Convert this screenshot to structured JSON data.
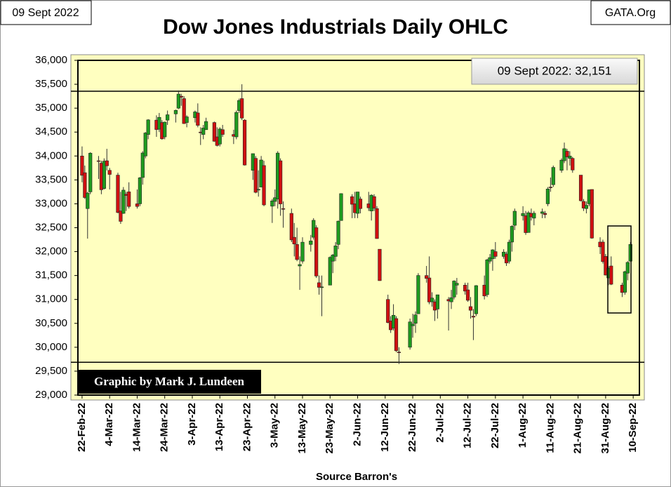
{
  "chart_data": {
    "type": "ohlc",
    "title": "Dow Jones Industrials Daily OHLC",
    "date_label": "09 Sept 2022",
    "site": "GATA.Org",
    "annotation": "09 Sept 2022: 32,151",
    "credit": "Graphic by Mark J. Lundeen",
    "x_label": "Source Barron's",
    "up_color": "#1e9a1e",
    "down_color": "#d01010",
    "reference_lines": [
      35354,
      29686
    ],
    "xlim": [
      "2022-02-21",
      "2022-09-12"
    ],
    "xticks": [
      {
        "value": "2022-02-22",
        "label": "22-Feb-22"
      },
      {
        "value": "2022-03-04",
        "label": "4-Mar-22"
      },
      {
        "value": "2022-03-14",
        "label": "14-Mar-22"
      },
      {
        "value": "2022-03-24",
        "label": "24-Mar-22"
      },
      {
        "value": "2022-04-03",
        "label": "3-Apr-22"
      },
      {
        "value": "2022-04-13",
        "label": "13-Apr-22"
      },
      {
        "value": "2022-04-23",
        "label": "23-Apr-22"
      },
      {
        "value": "2022-05-03",
        "label": "3-May-22"
      },
      {
        "value": "2022-05-13",
        "label": "13-May-22"
      },
      {
        "value": "2022-05-23",
        "label": "23-May-22"
      },
      {
        "value": "2022-06-02",
        "label": "2-Jun-22"
      },
      {
        "value": "2022-06-12",
        "label": "12-Jun-22"
      },
      {
        "value": "2022-06-22",
        "label": "22-Jun-22"
      },
      {
        "value": "2022-07-02",
        "label": "2-Jul-22"
      },
      {
        "value": "2022-07-12",
        "label": "12-Jul-22"
      },
      {
        "value": "2022-07-22",
        "label": "22-Jul-22"
      },
      {
        "value": "2022-08-01",
        "label": "1-Aug-22"
      },
      {
        "value": "2022-08-11",
        "label": "11-Aug-22"
      },
      {
        "value": "2022-08-21",
        "label": "21-Aug-22"
      },
      {
        "value": "2022-08-31",
        "label": "31-Aug-22"
      },
      {
        "value": "2022-09-10",
        "label": "10-Sep-22"
      }
    ],
    "ylim": [
      29000,
      36000
    ],
    "yticks": [
      {
        "value": 29000,
        "label": "29,000"
      },
      {
        "value": 29500,
        "label": "29,500"
      },
      {
        "value": 30000,
        "label": "30,000"
      },
      {
        "value": 30500,
        "label": "30,500"
      },
      {
        "value": 31000,
        "label": "31,000"
      },
      {
        "value": 31500,
        "label": "31,500"
      },
      {
        "value": 32000,
        "label": "32,000"
      },
      {
        "value": 32500,
        "label": "32,500"
      },
      {
        "value": 33000,
        "label": "33,000"
      },
      {
        "value": 33500,
        "label": "33,500"
      },
      {
        "value": 34000,
        "label": "34,000"
      },
      {
        "value": 34500,
        "label": "34,500"
      },
      {
        "value": 35000,
        "label": "35,000"
      },
      {
        "value": 35500,
        "label": "35,500"
      },
      {
        "value": 36000,
        "label": "36,000"
      }
    ],
    "x": [
      "2022-02-22",
      "2022-02-23",
      "2022-02-24",
      "2022-02-25",
      "2022-02-28",
      "2022-03-01",
      "2022-03-02",
      "2022-03-03",
      "2022-03-04",
      "2022-03-07",
      "2022-03-08",
      "2022-03-09",
      "2022-03-10",
      "2022-03-11",
      "2022-03-14",
      "2022-03-15",
      "2022-03-16",
      "2022-03-17",
      "2022-03-18",
      "2022-03-21",
      "2022-03-22",
      "2022-03-23",
      "2022-03-24",
      "2022-03-25",
      "2022-03-28",
      "2022-03-29",
      "2022-03-30",
      "2022-03-31",
      "2022-04-01",
      "2022-04-04",
      "2022-04-05",
      "2022-04-06",
      "2022-04-07",
      "2022-04-08",
      "2022-04-11",
      "2022-04-12",
      "2022-04-13",
      "2022-04-14",
      "2022-04-18",
      "2022-04-19",
      "2022-04-20",
      "2022-04-21",
      "2022-04-22",
      "2022-04-25",
      "2022-04-26",
      "2022-04-27",
      "2022-04-28",
      "2022-04-29",
      "2022-05-02",
      "2022-05-03",
      "2022-05-04",
      "2022-05-05",
      "2022-05-06",
      "2022-05-09",
      "2022-05-10",
      "2022-05-11",
      "2022-05-12",
      "2022-05-13",
      "2022-05-16",
      "2022-05-17",
      "2022-05-18",
      "2022-05-19",
      "2022-05-20",
      "2022-05-23",
      "2022-05-24",
      "2022-05-25",
      "2022-05-26",
      "2022-05-27",
      "2022-05-31",
      "2022-06-01",
      "2022-06-02",
      "2022-06-03",
      "2022-06-06",
      "2022-06-07",
      "2022-06-08",
      "2022-06-09",
      "2022-06-10",
      "2022-06-13",
      "2022-06-14",
      "2022-06-15",
      "2022-06-16",
      "2022-06-17",
      "2022-06-21",
      "2022-06-22",
      "2022-06-23",
      "2022-06-24",
      "2022-06-27",
      "2022-06-28",
      "2022-06-29",
      "2022-06-30",
      "2022-07-01",
      "2022-07-05",
      "2022-07-06",
      "2022-07-07",
      "2022-07-08",
      "2022-07-11",
      "2022-07-12",
      "2022-07-13",
      "2022-07-14",
      "2022-07-15",
      "2022-07-18",
      "2022-07-19",
      "2022-07-20",
      "2022-07-21",
      "2022-07-22",
      "2022-07-25",
      "2022-07-26",
      "2022-07-27",
      "2022-07-28",
      "2022-07-29",
      "2022-08-01",
      "2022-08-02",
      "2022-08-03",
      "2022-08-04",
      "2022-08-05",
      "2022-08-08",
      "2022-08-09",
      "2022-08-10",
      "2022-08-11",
      "2022-08-12",
      "2022-08-15",
      "2022-08-16",
      "2022-08-17",
      "2022-08-18",
      "2022-08-19",
      "2022-08-22",
      "2022-08-23",
      "2022-08-24",
      "2022-08-25",
      "2022-08-26",
      "2022-08-29",
      "2022-08-30",
      "2022-08-31",
      "2022-09-01",
      "2022-09-02",
      "2022-09-06",
      "2022-09-07",
      "2022-09-08",
      "2022-09-09"
    ],
    "ohlc": [
      [
        34000,
        34200,
        33450,
        33596
      ],
      [
        33650,
        33800,
        33100,
        33131
      ],
      [
        32900,
        33250,
        32272,
        33224
      ],
      [
        33250,
        34080,
        33200,
        34059
      ],
      [
        33900,
        34000,
        33520,
        33893
      ],
      [
        33850,
        33900,
        33200,
        33294
      ],
      [
        33320,
        33950,
        33300,
        33891
      ],
      [
        33900,
        34150,
        33700,
        33795
      ],
      [
        33700,
        33750,
        33300,
        33615
      ],
      [
        33600,
        33650,
        32800,
        32818
      ],
      [
        32850,
        33250,
        32580,
        32633
      ],
      [
        32800,
        33350,
        32790,
        33286
      ],
      [
        33200,
        33250,
        32850,
        33174
      ],
      [
        33250,
        33450,
        32900,
        32944
      ],
      [
        33000,
        33300,
        32900,
        32945
      ],
      [
        33000,
        33560,
        32950,
        33544
      ],
      [
        33550,
        34100,
        33400,
        34063
      ],
      [
        34000,
        34500,
        33950,
        34481
      ],
      [
        34450,
        34770,
        34350,
        34755
      ],
      [
        34750,
        34850,
        34400,
        34553
      ],
      [
        34560,
        34900,
        34500,
        34808
      ],
      [
        34700,
        34750,
        34340,
        34359
      ],
      [
        34400,
        34720,
        34350,
        34708
      ],
      [
        34750,
        34950,
        34650,
        34862
      ],
      [
        34880,
        34970,
        34700,
        34955
      ],
      [
        35000,
        35370,
        34980,
        35294
      ],
      [
        35250,
        35300,
        35050,
        35229
      ],
      [
        35200,
        35250,
        34670,
        34678
      ],
      [
        34700,
        34850,
        34600,
        34818
      ],
      [
        34800,
        34950,
        34700,
        34922
      ],
      [
        34900,
        35100,
        34600,
        34641
      ],
      [
        34500,
        34600,
        34230,
        34497
      ],
      [
        34450,
        34650,
        34350,
        34584
      ],
      [
        34550,
        34800,
        34550,
        34721
      ],
      [
        34700,
        34720,
        34300,
        34308
      ],
      [
        34400,
        34600,
        34200,
        34220
      ],
      [
        34250,
        34600,
        34200,
        34565
      ],
      [
        34550,
        34650,
        34400,
        34451
      ],
      [
        34450,
        34550,
        34250,
        34412
      ],
      [
        34400,
        34950,
        34350,
        34911
      ],
      [
        34950,
        35200,
        34900,
        35161
      ],
      [
        35200,
        35500,
        34750,
        34793
      ],
      [
        34750,
        34770,
        33800,
        33811
      ],
      [
        33700,
        34050,
        33500,
        34049
      ],
      [
        33950,
        34000,
        33220,
        33240
      ],
      [
        33300,
        33700,
        33150,
        33302
      ],
      [
        33350,
        34000,
        33350,
        33916
      ],
      [
        33800,
        33900,
        32950,
        32977
      ],
      [
        32950,
        33100,
        32600,
        33061
      ],
      [
        33050,
        33300,
        32950,
        33128
      ],
      [
        33100,
        34100,
        32900,
        34061
      ],
      [
        33900,
        33950,
        32750,
        32998
      ],
      [
        32900,
        33050,
        32500,
        32899
      ],
      [
        32800,
        32900,
        32200,
        32246
      ],
      [
        32300,
        32600,
        31900,
        32160
      ],
      [
        32150,
        32500,
        31800,
        31834
      ],
      [
        31700,
        31900,
        31200,
        31730
      ],
      [
        31800,
        32300,
        31750,
        32197
      ],
      [
        32150,
        32350,
        32000,
        32223
      ],
      [
        32300,
        32700,
        32250,
        32655
      ],
      [
        32500,
        32550,
        31450,
        31490
      ],
      [
        31350,
        31500,
        31100,
        31253
      ],
      [
        31250,
        31500,
        30650,
        31262
      ],
      [
        31300,
        31900,
        31300,
        31880
      ],
      [
        31800,
        31950,
        31550,
        31929
      ],
      [
        31900,
        32200,
        31800,
        32120
      ],
      [
        32150,
        32650,
        32050,
        32637
      ],
      [
        32650,
        33220,
        32650,
        33213
      ],
      [
        33150,
        33200,
        32700,
        32990
      ],
      [
        33000,
        33250,
        32700,
        32813
      ],
      [
        32800,
        33250,
        32700,
        33248
      ],
      [
        33100,
        33150,
        32800,
        32900
      ],
      [
        33000,
        33250,
        32850,
        32916
      ],
      [
        32850,
        33200,
        32650,
        33180
      ],
      [
        33150,
        33200,
        32850,
        32910
      ],
      [
        32900,
        32950,
        32270,
        32273
      ],
      [
        32050,
        32050,
        31390,
        31393
      ],
      [
        31000,
        31100,
        30500,
        30517
      ],
      [
        30550,
        30650,
        30300,
        30365
      ],
      [
        30400,
        30900,
        30350,
        30669
      ],
      [
        30600,
        30650,
        29900,
        29927
      ],
      [
        29900,
        30000,
        29650,
        29889
      ],
      [
        30000,
        30600,
        29950,
        30530
      ],
      [
        30450,
        30700,
        30200,
        30484
      ],
      [
        30500,
        30750,
        30300,
        30677
      ],
      [
        30700,
        31550,
        30700,
        31501
      ],
      [
        31500,
        31700,
        31350,
        31439
      ],
      [
        31450,
        31900,
        30900,
        30947
      ],
      [
        30950,
        31150,
        30850,
        31029
      ],
      [
        30950,
        31000,
        30550,
        30775
      ],
      [
        30800,
        31100,
        30600,
        31097
      ],
      [
        31000,
        31050,
        30350,
        30968
      ],
      [
        30950,
        31200,
        30800,
        31037
      ],
      [
        31050,
        31400,
        31000,
        31385
      ],
      [
        31300,
        31450,
        31100,
        31338
      ],
      [
        31300,
        31350,
        31100,
        31174
      ],
      [
        31200,
        31350,
        30950,
        30982
      ],
      [
        30850,
        31050,
        30600,
        30773
      ],
      [
        30650,
        30800,
        30150,
        30630
      ],
      [
        30700,
        31300,
        30650,
        31289
      ],
      [
        31300,
        31500,
        31000,
        31073
      ],
      [
        31100,
        31850,
        31050,
        31828
      ],
      [
        31800,
        31950,
        31750,
        31875
      ],
      [
        31850,
        32050,
        31600,
        32037
      ],
      [
        32000,
        32200,
        31850,
        31900
      ],
      [
        31900,
        32050,
        31850,
        31990
      ],
      [
        31950,
        32000,
        31700,
        31762
      ],
      [
        31800,
        32250,
        31750,
        32198
      ],
      [
        32200,
        32550,
        32000,
        32530
      ],
      [
        32550,
        32900,
        32450,
        32845
      ],
      [
        32750,
        32950,
        32650,
        32798
      ],
      [
        32750,
        32850,
        32350,
        32397
      ],
      [
        32400,
        32850,
        32400,
        32813
      ],
      [
        32800,
        32900,
        32650,
        32727
      ],
      [
        32700,
        32850,
        32550,
        32803
      ],
      [
        32800,
        32900,
        32700,
        32833
      ],
      [
        32800,
        32850,
        32700,
        32775
      ],
      [
        33000,
        33350,
        32950,
        33310
      ],
      [
        33350,
        33550,
        33250,
        33337
      ],
      [
        33400,
        33800,
        33350,
        33761
      ],
      [
        33700,
        33950,
        33650,
        33913
      ],
      [
        33900,
        34280,
        33850,
        34152
      ],
      [
        34100,
        34150,
        33700,
        33981
      ],
      [
        33950,
        34100,
        33800,
        33999
      ],
      [
        33950,
        33980,
        33650,
        33707
      ],
      [
        33600,
        33600,
        33050,
        33064
      ],
      [
        33050,
        33100,
        32850,
        32910
      ],
      [
        32900,
        33050,
        32800,
        32969
      ],
      [
        33000,
        33300,
        32950,
        33292
      ],
      [
        33300,
        33300,
        32270,
        32283
      ],
      [
        32200,
        32300,
        31950,
        32099
      ],
      [
        32200,
        32250,
        31750,
        31791
      ],
      [
        31900,
        31950,
        31500,
        31510
      ],
      [
        31450,
        31700,
        31300,
        31656
      ],
      [
        31700,
        31900,
        31300,
        31318
      ],
      [
        31300,
        31350,
        31050,
        31146
      ],
      [
        31150,
        31600,
        31100,
        31581
      ],
      [
        31550,
        31800,
        31400,
        31775
      ],
      [
        31800,
        32200,
        31800,
        32151
      ]
    ]
  }
}
